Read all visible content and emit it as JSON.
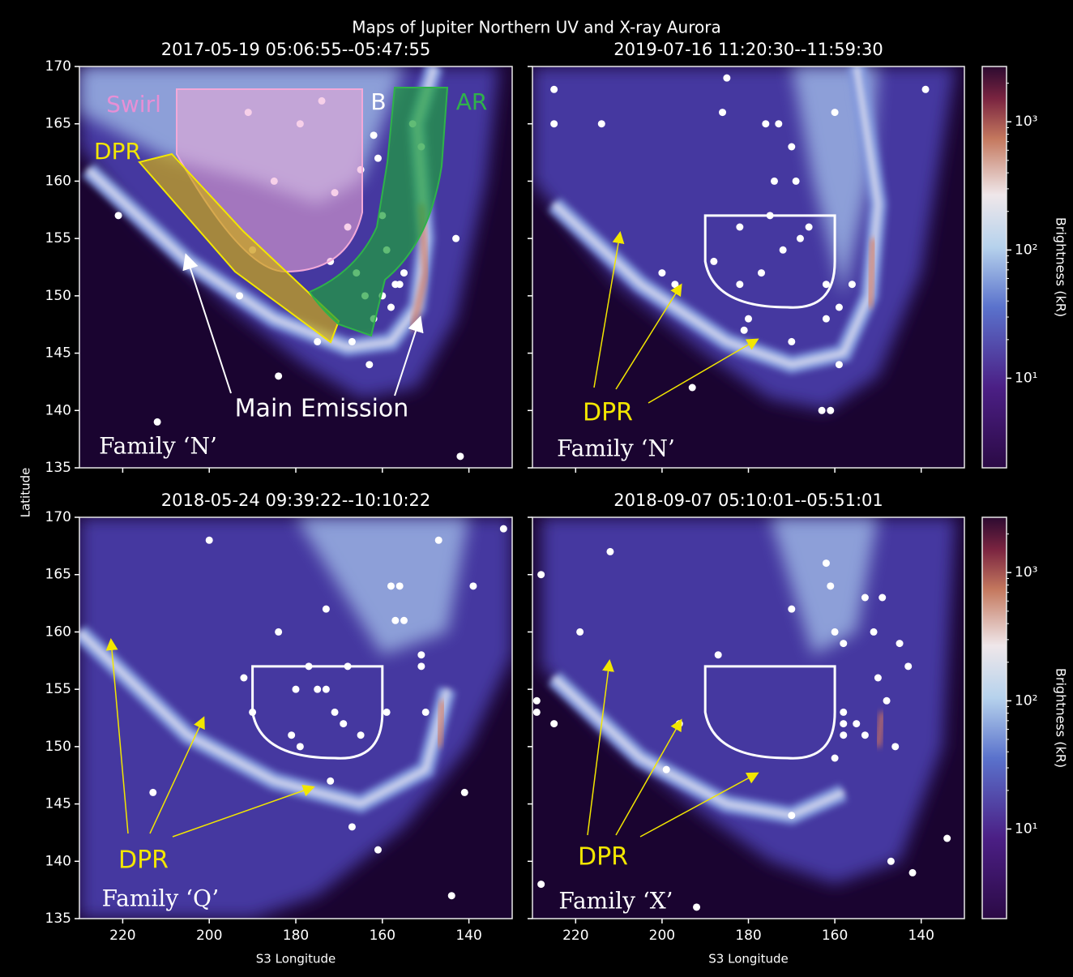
{
  "title": "Maps of Jupiter Northern UV and X-ray Aurora",
  "colorbar": {
    "label": "Brightness (kR)",
    "log_scale": true,
    "lim": [
      2,
      2700
    ],
    "ticks": [
      {
        "value": 10,
        "label": "10¹"
      },
      {
        "value": 100,
        "label": "10²"
      },
      {
        "value": 1000,
        "label": "10³"
      }
    ]
  },
  "chart_data": [
    {
      "type": "scatter",
      "title": "2017-05-19 05:06:55--05:47:55",
      "color": "#ffffff",
      "x": [
        221,
        212,
        184,
        142,
        193,
        191,
        179,
        174,
        185,
        175,
        167,
        163,
        143,
        162,
        161,
        160,
        159,
        157,
        153,
        151,
        190,
        171,
        165,
        166,
        164,
        162,
        160,
        158,
        156,
        155,
        168,
        172
      ],
      "y": [
        157,
        139,
        143,
        136,
        150,
        166,
        165,
        167,
        160,
        146,
        146,
        144,
        155,
        164,
        162,
        157,
        154,
        151,
        165,
        163,
        154,
        159,
        161,
        152,
        150,
        148,
        150,
        149,
        151,
        152,
        156,
        153
      ],
      "xlim": [
        230,
        130
      ],
      "ylim": [
        135,
        170
      ],
      "xticks": [
        220,
        200,
        180,
        160,
        140
      ],
      "yticks": [
        135,
        140,
        145,
        150,
        155,
        160,
        165,
        170
      ],
      "xticklabels": false,
      "yticklabels": true,
      "colorbar": false,
      "annotations": [
        {
          "text": "Swirl",
          "color": "#e78fd5"
        },
        {
          "text": "B",
          "color": "#ffffff"
        },
        {
          "text": "AR",
          "color": "#2fb24a"
        },
        {
          "text": "DPR",
          "color": "#f2e600"
        },
        {
          "text": "Main Emission",
          "color": "#ffffff"
        },
        {
          "text": "Family ‘N’",
          "color": "#ffffff"
        }
      ]
    },
    {
      "type": "scatter",
      "title": "2019-07-16 11:20:30--11:59:30",
      "color": "#ffffff",
      "x": [
        225,
        225,
        214,
        185,
        186,
        176,
        173,
        160,
        139,
        193,
        163,
        161,
        200,
        197,
        175,
        182,
        188,
        182,
        177,
        172,
        168,
        166,
        162,
        159,
        156,
        162,
        180,
        181,
        170,
        159,
        174,
        169,
        170
      ],
      "y": [
        168,
        165,
        165,
        169,
        166,
        165,
        165,
        166,
        168,
        142,
        140,
        140,
        152,
        151,
        157,
        156,
        153,
        151,
        152,
        154,
        155,
        156,
        151,
        149,
        151,
        148,
        148,
        147,
        146,
        144,
        160,
        160,
        163
      ],
      "xlim": [
        230,
        130
      ],
      "ylim": [
        135,
        170
      ],
      "xticks": [
        220,
        200,
        180,
        160,
        140
      ],
      "yticks": [
        135,
        140,
        145,
        150,
        155,
        160,
        165,
        170
      ],
      "xticklabels": false,
      "yticklabels": false,
      "colorbar": true,
      "annotations": [
        {
          "text": "DPR",
          "color": "#f2e600"
        },
        {
          "text": "Family ‘N’",
          "color": "#ffffff"
        }
      ]
    },
    {
      "type": "scatter",
      "title": "2018-05-24 09:39:22--10:10:22",
      "color": "#ffffff",
      "xlabel": "S3 Longitude",
      "ylabel": "Latitude",
      "x": [
        132,
        200,
        147,
        139,
        158,
        156,
        173,
        184,
        157,
        155,
        151,
        151,
        192,
        190,
        177,
        168,
        180,
        175,
        173,
        171,
        159,
        150,
        181,
        179,
        169,
        165,
        172,
        213,
        141,
        167,
        161,
        144
      ],
      "y": [
        169,
        168,
        168,
        164,
        164,
        164,
        162,
        160,
        161,
        161,
        158,
        157,
        156,
        153,
        157,
        157,
        155,
        155,
        155,
        153,
        153,
        153,
        151,
        150,
        152,
        151,
        147,
        146,
        146,
        143,
        141,
        137
      ],
      "xlim": [
        230,
        130
      ],
      "ylim": [
        135,
        170
      ],
      "xticks": [
        220,
        200,
        180,
        160,
        140
      ],
      "yticks": [
        135,
        140,
        145,
        150,
        155,
        160,
        165,
        170
      ],
      "xticklabels": true,
      "yticklabels": true,
      "colorbar": false,
      "annotations": [
        {
          "text": "DPR",
          "color": "#f2e600"
        },
        {
          "text": "Family ‘Q’",
          "color": "#ffffff"
        }
      ]
    },
    {
      "type": "scatter",
      "title": "2018-09-07 05:10:01--05:51:01",
      "color": "#ffffff",
      "xlabel": "S3 Longitude",
      "x": [
        212,
        228,
        229,
        229,
        225,
        228,
        219,
        192,
        162,
        161,
        170,
        153,
        149,
        160,
        158,
        151,
        145,
        143,
        150,
        148,
        187,
        158,
        158,
        155,
        158,
        153,
        160,
        146,
        199,
        196,
        170,
        147,
        142,
        134
      ],
      "y": [
        167,
        165,
        154,
        153,
        152,
        138,
        160,
        136,
        166,
        164,
        162,
        163,
        163,
        160,
        159,
        160,
        159,
        157,
        156,
        154,
        158,
        153,
        152,
        152,
        151,
        151,
        149,
        150,
        148,
        152,
        144,
        140,
        139,
        142
      ],
      "xlim": [
        230,
        130
      ],
      "ylim": [
        135,
        170
      ],
      "xticks": [
        220,
        200,
        180,
        160,
        140
      ],
      "yticks": [
        135,
        140,
        145,
        150,
        155,
        160,
        165,
        170
      ],
      "xticklabels": true,
      "yticklabels": false,
      "colorbar": true,
      "annotations": [
        {
          "text": "DPR",
          "color": "#f2e600"
        },
        {
          "text": "Family ‘X’",
          "color": "#ffffff"
        }
      ]
    }
  ]
}
